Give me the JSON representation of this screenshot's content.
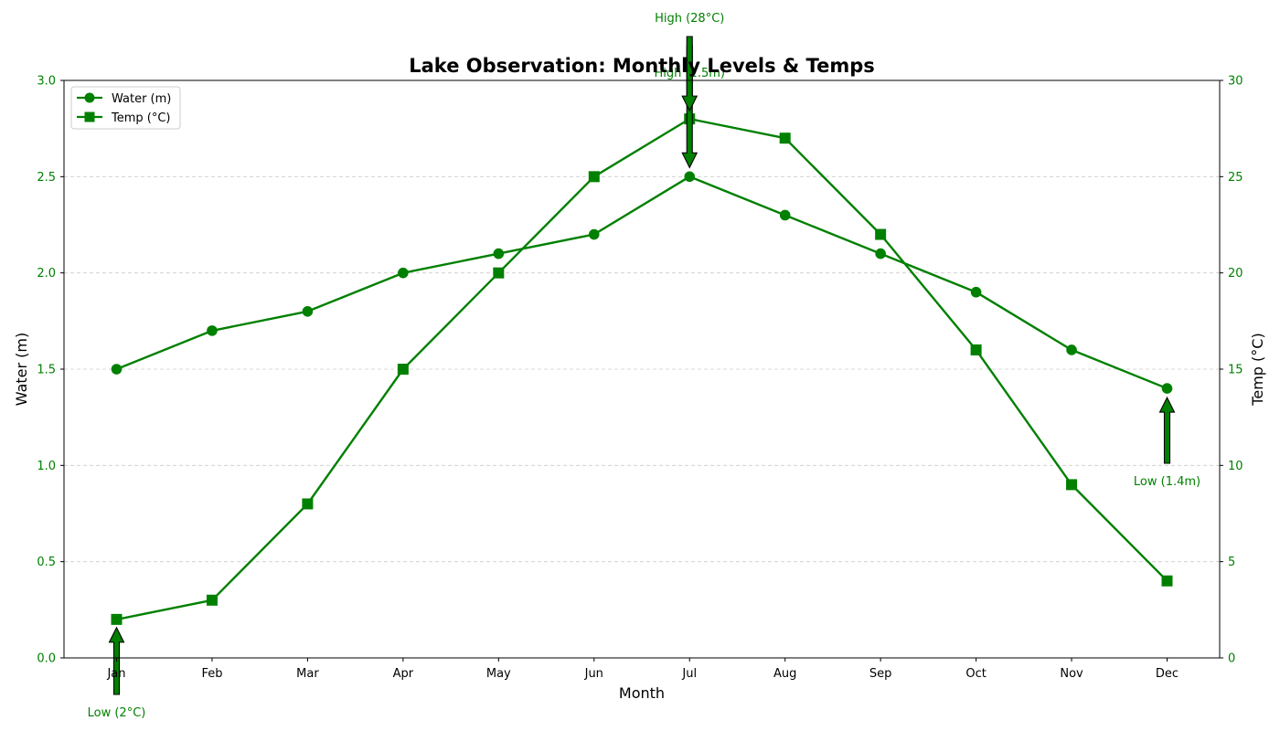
{
  "chart_data": {
    "type": "line",
    "title": "Lake Observation: Monthly Levels & Temps",
    "xlabel": "Month",
    "ylabel_left": "Water (m)",
    "ylabel_right": "Temp (°C)",
    "categories": [
      "Jan",
      "Feb",
      "Mar",
      "Apr",
      "May",
      "Jun",
      "Jul",
      "Aug",
      "Sep",
      "Oct",
      "Nov",
      "Dec"
    ],
    "ylim_left": [
      0,
      3.0
    ],
    "ylim_right": [
      0,
      30
    ],
    "yticks_left": [
      "0.0",
      "0.5",
      "1.0",
      "1.5",
      "2.0",
      "2.5",
      "3.0"
    ],
    "yticks_right": [
      "0",
      "5",
      "10",
      "15",
      "20",
      "25",
      "30"
    ],
    "grid": "horizontal dashed",
    "legend_position": "top-left",
    "color": "#008000",
    "series": [
      {
        "name": "Water (m)",
        "axis": "left",
        "marker": "circle",
        "values": [
          1.5,
          1.7,
          1.8,
          2.0,
          2.1,
          2.2,
          2.5,
          2.3,
          2.1,
          1.9,
          1.6,
          1.4
        ]
      },
      {
        "name": "Temp (°C)",
        "axis": "right",
        "marker": "square",
        "values": [
          2,
          3,
          8,
          15,
          20,
          25,
          28,
          27,
          22,
          16,
          9,
          4
        ]
      }
    ],
    "annotations": [
      {
        "text": "High (2.5m)",
        "month": "Jul",
        "series": "Water (m)",
        "direction": "down"
      },
      {
        "text": "Low (1.4m)",
        "month": "Dec",
        "series": "Water (m)",
        "direction": "up"
      },
      {
        "text": "High (28°C)",
        "month": "Jul",
        "series": "Temp (°C)",
        "direction": "down"
      },
      {
        "text": "Low (2°C)",
        "month": "Jan",
        "series": "Temp (°C)",
        "direction": "up"
      }
    ]
  }
}
